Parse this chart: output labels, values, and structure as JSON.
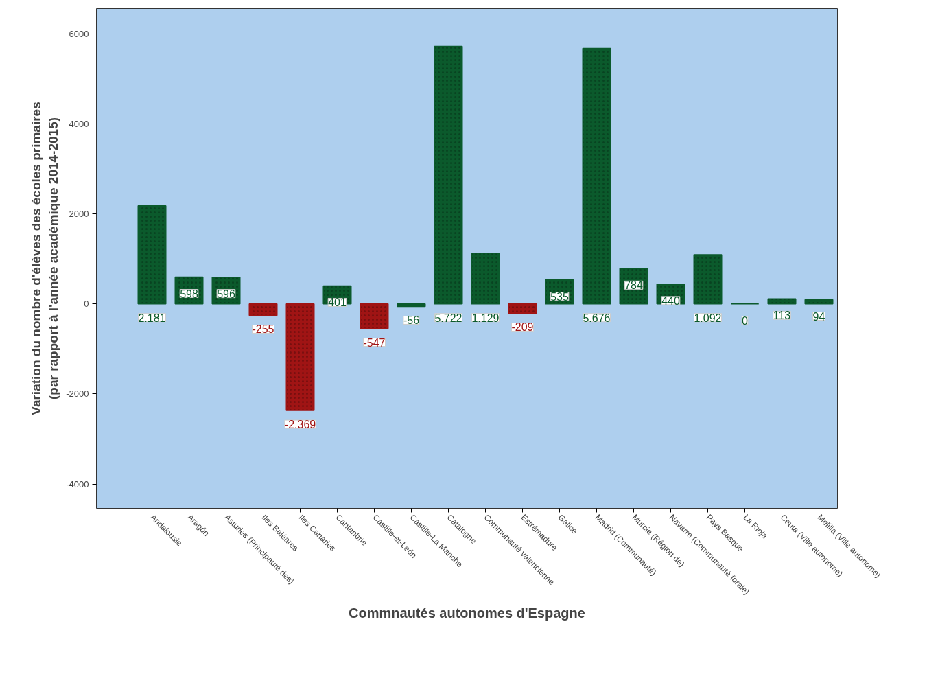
{
  "chart_data": {
    "type": "bar",
    "xlabel": "Commnautés autonomes d'Espagne",
    "ylabel": "Variation du nombre d'élèves des écoles primaires (par rapport à l'année académique 2014-2015)",
    "categories": [
      "Andalousie",
      "Aragón",
      "Asturies (Principauté des)",
      "Iles Baléares",
      "Iles Canaries",
      "Cantanbrie",
      "Castille-et-León",
      "Castille-La Manche",
      "Catalogne",
      "Communauté valencienne",
      "Estrémadure",
      "Galice",
      "Madrid (Communauté)",
      "Murcie (Région de)",
      "Navarre (Communauté forale)",
      "Pays Basque",
      "La Rioja",
      "Ceuta (Ville autonome)",
      "Melilla (Ville autonome)"
    ],
    "values": [
      2181,
      598,
      596,
      -255,
      -2369,
      401,
      -547,
      -56,
      5722,
      1129,
      -209,
      535,
      5676,
      784,
      440,
      1092,
      0,
      113,
      94
    ],
    "colors": [
      "#0b5a2c",
      "#0b5a2c",
      "#0b5a2c",
      "#a01414",
      "#a01414",
      "#0b5a2c",
      "#a01414",
      "#0b5a2c",
      "#0b5a2c",
      "#0b5a2c",
      "#a01414",
      "#0b5a2c",
      "#0b5a2c",
      "#0b5a2c",
      "#0b5a2c",
      "#0b5a2c",
      "#0b5a2c",
      "#0b5a2c",
      "#0b5a2c"
    ],
    "value_labels": [
      "2.181",
      "598",
      "596",
      "-255",
      "-2.369",
      "401",
      "-547",
      "-56",
      "5.722",
      "1.129",
      "-209",
      "535",
      "5.676",
      "784",
      "440",
      "1.092",
      "0",
      "113",
      "94"
    ],
    "ylim": [
      -4540,
      6560
    ],
    "yticks": [
      -4000,
      -2000,
      0,
      2000,
      4000,
      6000
    ],
    "grid": false
  }
}
